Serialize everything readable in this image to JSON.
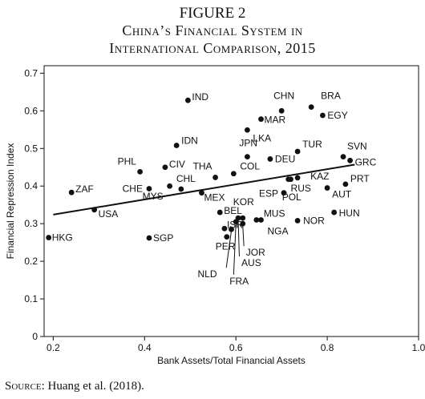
{
  "figure": {
    "label": "FIGURE 2",
    "title_line1": "China’s Financial System in",
    "title_line2": "International Comparison, 2015"
  },
  "source": {
    "prefix": "Source:",
    "text": "Huang et al. (2018)."
  },
  "chart_data": {
    "type": "scatter",
    "xlabel": "Bank Assets/Total Financial Assets",
    "ylabel": "Financial Repression Index",
    "xlim": [
      0.18,
      1.0
    ],
    "ylim": [
      0,
      0.72
    ],
    "xticks": [
      "0.2",
      "0.4",
      "0.6",
      "0.8",
      "1.0"
    ],
    "yticks": [
      "0",
      "0.1",
      "0.2",
      "0.3",
      "0.4",
      "0.5",
      "0.6",
      "0.7"
    ],
    "grid": false,
    "legend": "none",
    "fit_line": {
      "x": [
        0.2,
        0.86
      ],
      "y": [
        0.324,
        0.457
      ]
    },
    "points": [
      {
        "label": "HKG",
        "x": 0.19,
        "y": 0.263
      },
      {
        "label": "ZAF",
        "x": 0.24,
        "y": 0.383
      },
      {
        "label": "USA",
        "x": 0.29,
        "y": 0.337
      },
      {
        "label": "PHL",
        "x": 0.39,
        "y": 0.438
      },
      {
        "label": "SGP",
        "x": 0.41,
        "y": 0.262
      },
      {
        "label": "CHE",
        "x": 0.41,
        "y": 0.393
      },
      {
        "label": "CIV",
        "x": 0.445,
        "y": 0.45
      },
      {
        "label": "MYS",
        "x": 0.455,
        "y": 0.4
      },
      {
        "label": "IDN",
        "x": 0.47,
        "y": 0.508
      },
      {
        "label": "CHL",
        "x": 0.48,
        "y": 0.392
      },
      {
        "label": "IND",
        "x": 0.495,
        "y": 0.628
      },
      {
        "label": "MEX",
        "x": 0.525,
        "y": 0.382
      },
      {
        "label": "THA",
        "x": 0.555,
        "y": 0.423
      },
      {
        "label": "BEL",
        "x": 0.565,
        "y": 0.33
      },
      {
        "label": "ISR",
        "x": 0.575,
        "y": 0.287
      },
      {
        "label": "PER",
        "x": 0.58,
        "y": 0.265
      },
      {
        "label": "COL",
        "x": 0.595,
        "y": 0.433
      },
      {
        "label": "NLD",
        "x": 0.59,
        "y": 0.285
      },
      {
        "label": "FRA",
        "x": 0.6,
        "y": 0.305
      },
      {
        "label": "AUS",
        "x": 0.605,
        "y": 0.315
      },
      {
        "label": "KOR",
        "x": 0.615,
        "y": 0.315
      },
      {
        "label": "JOR",
        "x": 0.615,
        "y": 0.3
      },
      {
        "label": "JPN",
        "x": 0.625,
        "y": 0.478
      },
      {
        "label": "LKA",
        "x": 0.625,
        "y": 0.549
      },
      {
        "label": "MUS",
        "x": 0.645,
        "y": 0.31
      },
      {
        "label": "NGA",
        "x": 0.655,
        "y": 0.31
      },
      {
        "label": "MAR",
        "x": 0.655,
        "y": 0.578
      },
      {
        "label": "DEU",
        "x": 0.675,
        "y": 0.472
      },
      {
        "label": "CHN",
        "x": 0.7,
        "y": 0.6
      },
      {
        "label": "ESP",
        "x": 0.705,
        "y": 0.382
      },
      {
        "label": "POL",
        "x": 0.715,
        "y": 0.418
      },
      {
        "label": "RUS",
        "x": 0.72,
        "y": 0.418
      },
      {
        "label": "KAZ",
        "x": 0.735,
        "y": 0.422
      },
      {
        "label": "TUR",
        "x": 0.735,
        "y": 0.492
      },
      {
        "label": "NOR",
        "x": 0.735,
        "y": 0.308
      },
      {
        "label": "BRA",
        "x": 0.765,
        "y": 0.61
      },
      {
        "label": "EGY",
        "x": 0.79,
        "y": 0.588
      },
      {
        "label": "AUT",
        "x": 0.8,
        "y": 0.395
      },
      {
        "label": "HUN",
        "x": 0.815,
        "y": 0.33
      },
      {
        "label": "PRT",
        "x": 0.84,
        "y": 0.405
      },
      {
        "label": "SVN",
        "x": 0.835,
        "y": 0.478
      },
      {
        "label": "GRC",
        "x": 0.85,
        "y": 0.468
      }
    ]
  }
}
